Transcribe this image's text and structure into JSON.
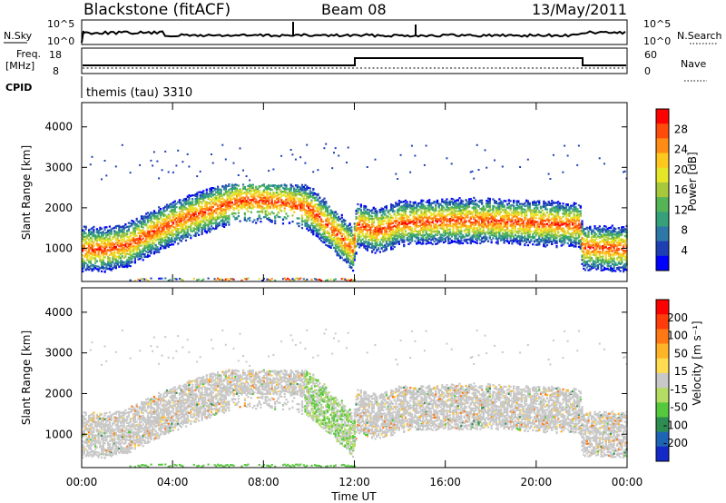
{
  "header": {
    "station": "Blackstone (fitACF)",
    "beam": "Beam 08",
    "date": "13/May/2011"
  },
  "top_panels": {
    "nsky_label": "N.Sky",
    "nsky_ticks": [
      "10^5",
      "10^0"
    ],
    "nsearch_label": "N.Search",
    "nsearch_ticks": [
      "10^5",
      "10^0"
    ],
    "freq_label_1": "Freq.",
    "freq_label_2": "[MHz]",
    "freq_ticks": [
      "18",
      "8"
    ],
    "nave_label": "Nave",
    "nave_ticks": [
      "60",
      "0"
    ],
    "cpid_label": "CPID",
    "cpid_text": "themis (tau) 3310"
  },
  "chart_data": [
    {
      "type": "heatmap",
      "name": "power",
      "xlabel": "",
      "ylabel": "Slant Range [km]",
      "x_range": [
        "00:00",
        "24:00"
      ],
      "y_range": [
        180,
        4600
      ],
      "y_ticks": [
        "4000",
        "3000",
        "2000",
        "1000"
      ],
      "colorbar_label": "Power [dB]",
      "colorbar_ticks": [
        "28",
        "24",
        "20",
        "16",
        "12",
        "8",
        "4"
      ],
      "colorbar_colors": [
        "#0000ff",
        "#1e3fb4",
        "#2e78a8",
        "#35a07a",
        "#55b455",
        "#a8c83c",
        "#e6e628",
        "#ffc81e",
        "#ff8c14",
        "#ff4b0a",
        "#ff0000"
      ],
      "band_trace_km": [
        {
          "t": 0,
          "r": 1000
        },
        {
          "t": 1,
          "r": 1000
        },
        {
          "t": 2,
          "r": 1100
        },
        {
          "t": 3,
          "r": 1400
        },
        {
          "t": 4,
          "r": 1650
        },
        {
          "t": 5,
          "r": 1850
        },
        {
          "t": 6,
          "r": 2050
        },
        {
          "t": 7,
          "r": 2200
        },
        {
          "t": 8,
          "r": 2200
        },
        {
          "t": 9,
          "r": 2150
        },
        {
          "t": 10,
          "r": 2000
        },
        {
          "t": 11,
          "r": 1500
        },
        {
          "t": 11.9,
          "r": 1000
        },
        {
          "t": 12.1,
          "r": 1600
        },
        {
          "t": 13,
          "r": 1450
        },
        {
          "t": 14,
          "r": 1650
        },
        {
          "t": 16,
          "r": 1700
        },
        {
          "t": 18,
          "r": 1700
        },
        {
          "t": 20,
          "r": 1650
        },
        {
          "t": 21.9,
          "r": 1600
        },
        {
          "t": 22,
          "r": 1050
        },
        {
          "t": 24,
          "r": 1000
        }
      ]
    },
    {
      "type": "heatmap",
      "name": "velocity",
      "xlabel": "Time UT",
      "ylabel": "Slant Range [km]",
      "x_ticks": [
        "00:00",
        "04:00",
        "08:00",
        "12:00",
        "16:00",
        "20:00",
        "00:00"
      ],
      "y_range": [
        180,
        4600
      ],
      "y_ticks": [
        "4000",
        "3000",
        "2000",
        "1000"
      ],
      "colorbar_label": "Velocity [m s⁻¹]",
      "colorbar_ticks": [
        "200",
        "100",
        "50",
        "15",
        "-15",
        "-50",
        "-100",
        "-200"
      ],
      "colorbar_colors": [
        "#1428c8",
        "#1e64b4",
        "#2d8c50",
        "#55c83c",
        "#b4dc64",
        "#c8c8c8",
        "#ffdc50",
        "#ffb428",
        "#ff7814",
        "#ff3c0a",
        "#ff0000"
      ]
    }
  ]
}
